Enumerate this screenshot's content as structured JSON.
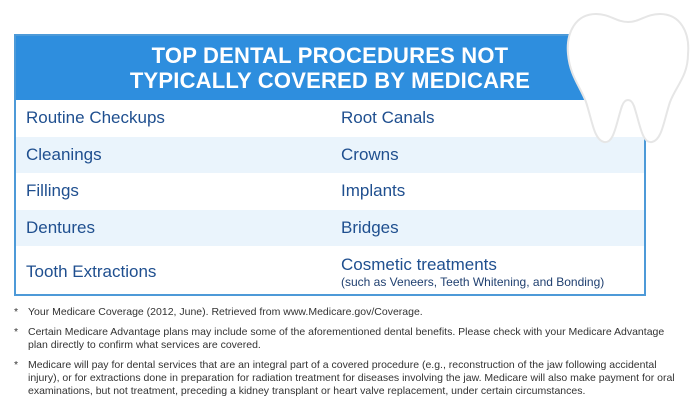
{
  "title": {
    "line1": "TOP DENTAL PROCEDURES NOT",
    "line2": "TYPICALLY COVERED BY MEDICARE"
  },
  "procedures": {
    "left": [
      "Routine Checkups",
      "Cleanings",
      "Fillings",
      "Dentures",
      "Tooth Extractions"
    ],
    "right": [
      "Root Canals",
      "Crowns",
      "Implants",
      "Bridges",
      "Cosmetic treatments"
    ],
    "right_last_sub": "(such as Veneers, Teeth Whitening, and Bonding)"
  },
  "footnotes": [
    {
      "marker": "*",
      "text": "Your Medicare Coverage (2012, June). Retrieved from www.Medicare.gov/Coverage."
    },
    {
      "marker": "*",
      "text": "Certain Medicare Advantage plans may include some of the aforementioned dental benefits. Please check with your Medicare Advantage plan directly to confirm what services are covered."
    },
    {
      "marker": "*",
      "text": "Medicare will pay for dental services that are an integral part of a covered procedure (e.g., reconstruction of the jaw following accidental injury), or for extractions done in preparation for radiation treatment for diseases involving the jaw. Medicare will also make payment for oral examinations, but not treatment, preceding a kidney transplant or heart valve replacement, under certain circumstances."
    }
  ],
  "colors": {
    "header_bg": "#2e8ede",
    "border": "#4d9ad8",
    "alt_row": "#eaf4fc",
    "text_blue": "#1f4f8f"
  },
  "icons": [
    "tooth-icon"
  ]
}
